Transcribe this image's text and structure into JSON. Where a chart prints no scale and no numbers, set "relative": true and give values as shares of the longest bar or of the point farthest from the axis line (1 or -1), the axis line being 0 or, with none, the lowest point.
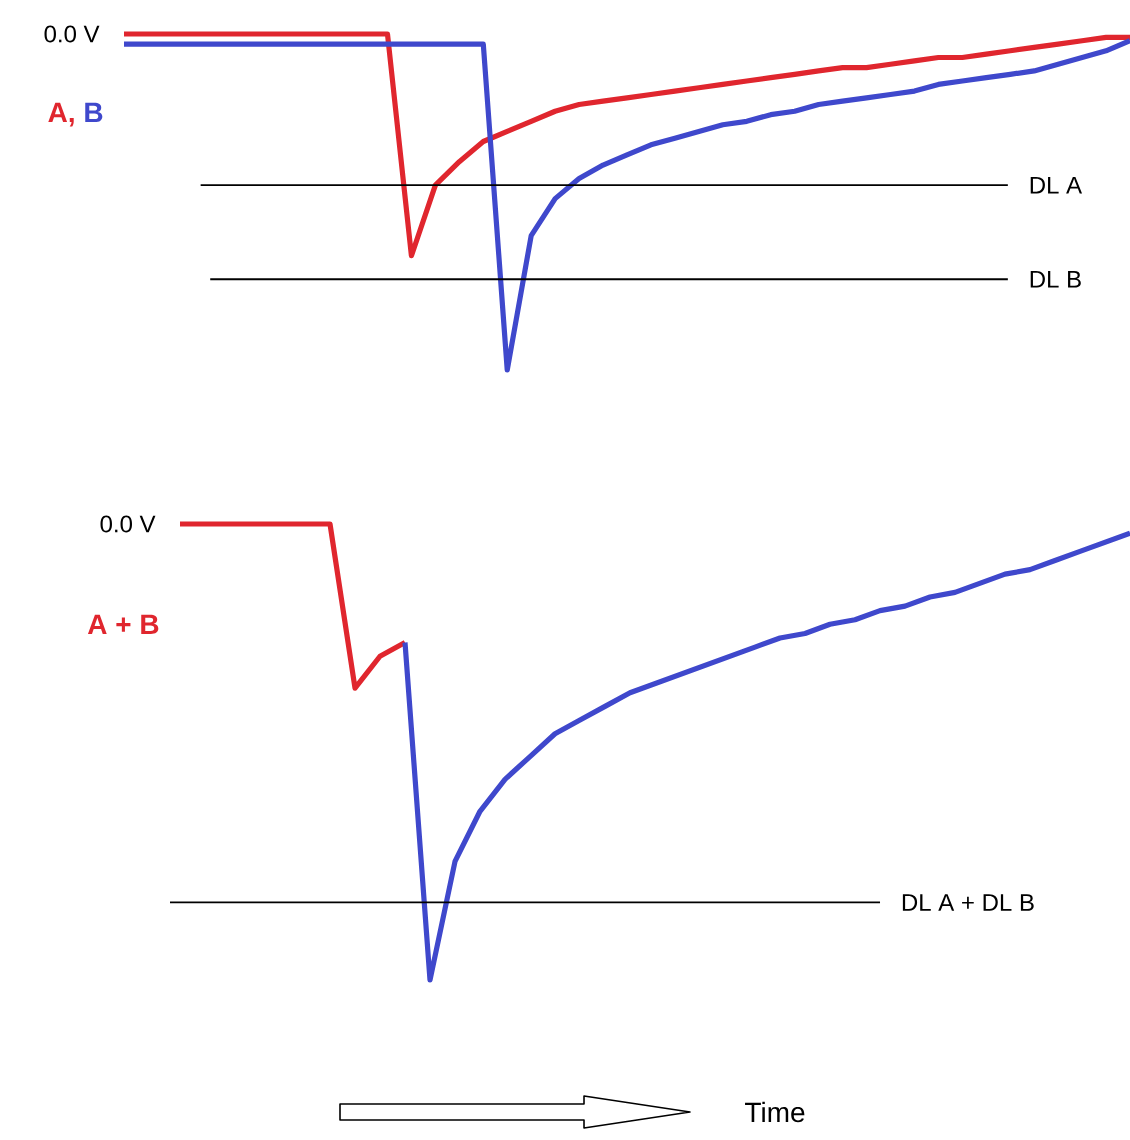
{
  "chart_data": [
    {
      "type": "line",
      "relative": true,
      "line_style": "solid",
      "categories": [
        null,
        null,
        null,
        null,
        null,
        null,
        null,
        null,
        null,
        null,
        null,
        null,
        null,
        null,
        null,
        null,
        null,
        null,
        null,
        null,
        null,
        null,
        null,
        null,
        null,
        null,
        null,
        null,
        null,
        null,
        null,
        null,
        null,
        null,
        null,
        null,
        null,
        null,
        null,
        null,
        null,
        null,
        null
      ],
      "series": [
        {
          "name": "A,",
          "color": "#e0262e",
          "values": [
            1.0,
            1.0,
            1.0,
            1.0,
            1.0,
            1.0,
            1.0,
            1.0,
            1.0,
            1.0,
            1.0,
            1.0,
            0.34,
            0.55,
            0.62,
            0.68,
            0.71,
            0.74,
            0.77,
            0.79,
            0.8,
            0.81,
            0.82,
            0.83,
            0.84,
            0.85,
            0.86,
            0.87,
            0.88,
            0.89,
            0.9,
            0.9,
            0.91,
            0.92,
            0.93,
            0.93,
            0.94,
            0.95,
            0.96,
            0.97,
            0.98,
            0.99,
            0.99
          ]
        },
        {
          "name": "B",
          "color": "#3f48cc",
          "values": [
            0.97,
            0.97,
            0.97,
            0.97,
            0.97,
            0.97,
            0.97,
            0.97,
            0.97,
            0.97,
            0.97,
            0.97,
            0.97,
            0.97,
            0.97,
            0.97,
            0,
            0.4,
            0.51,
            0.57,
            0.61,
            0.64,
            0.67,
            0.69,
            0.71,
            0.73,
            0.74,
            0.76,
            0.77,
            0.79,
            0.8,
            0.81,
            0.82,
            0.83,
            0.85,
            0.86,
            0.87,
            0.88,
            0.89,
            0.91,
            0.93,
            0.95,
            0.98
          ]
        }
      ],
      "ref_lines": [
        {
          "axis": "y",
          "value": 0.55,
          "label": "DL A"
        },
        {
          "axis": "y",
          "value": 0.27,
          "label": "DL B"
        }
      ],
      "annotations": [
        "0.0 V"
      ]
    },
    {
      "type": "line",
      "relative": true,
      "line_style": "solid",
      "ylabel": "A + B",
      "xlabel": "Time",
      "categories": [
        null,
        null,
        null,
        null,
        null,
        null,
        null,
        null,
        null,
        null,
        null,
        null,
        null,
        null,
        null,
        null,
        null,
        null,
        null,
        null,
        null,
        null,
        null,
        null,
        null,
        null,
        null,
        null,
        null,
        null,
        null,
        null,
        null,
        null,
        null,
        null,
        null,
        null,
        null,
        null,
        null,
        null,
        null
      ],
      "series": [
        {
          "color": "#e0262e",
          "values": [
            null,
            null,
            null,
            null,
            1.0,
            1.0,
            1.0,
            1.0,
            1.0,
            1.0,
            1.0,
            0.64,
            0.71,
            0.74,
            null,
            null,
            null,
            null,
            null,
            null,
            null,
            null,
            null,
            null,
            null,
            null,
            null,
            null,
            null,
            null,
            null,
            null,
            null,
            null,
            null,
            null,
            null,
            null,
            null,
            null,
            null,
            null,
            null
          ]
        },
        {
          "color": "#3f48cc",
          "values": [
            null,
            null,
            null,
            null,
            null,
            null,
            null,
            null,
            null,
            null,
            null,
            null,
            null,
            0.74,
            0,
            0.26,
            0.37,
            0.44,
            0.49,
            0.54,
            0.57,
            0.6,
            0.63,
            0.65,
            0.67,
            0.69,
            0.71,
            0.73,
            0.75,
            0.76,
            0.78,
            0.79,
            0.81,
            0.82,
            0.84,
            0.85,
            0.87,
            0.89,
            0.9,
            0.92,
            0.94,
            0.96,
            0.98
          ]
        }
      ],
      "ref_lines": [
        {
          "axis": "y",
          "value": 0.17,
          "label": "DL A + DL B"
        }
      ],
      "annotations": [
        "0.0 V"
      ]
    }
  ]
}
